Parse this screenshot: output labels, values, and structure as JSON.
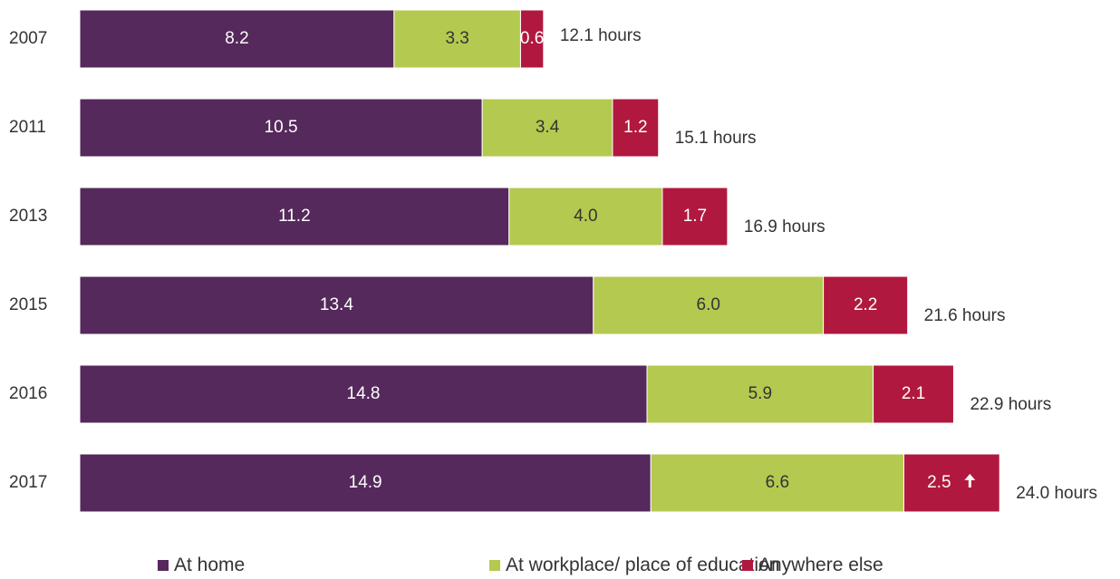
{
  "chart_data": {
    "type": "bar",
    "orientation": "horizontal",
    "stacked": true,
    "categories": [
      "2007",
      "2011",
      "2013",
      "2015",
      "2016",
      "2017"
    ],
    "series": [
      {
        "name": "At home",
        "color": "#55295b",
        "values": [
          8.2,
          10.5,
          11.2,
          13.4,
          14.8,
          14.9
        ]
      },
      {
        "name": "At workplace/ place of education",
        "color": "#b4c94f",
        "values": [
          3.3,
          3.4,
          4.0,
          6.0,
          5.9,
          6.6
        ]
      },
      {
        "name": "Anywhere else",
        "color": "#b1183f",
        "values": [
          0.6,
          1.2,
          1.7,
          2.2,
          2.1,
          2.5
        ]
      }
    ],
    "data_labels": [
      [
        "8.2",
        "3.3",
        "0.6"
      ],
      [
        "10.5",
        "3.4",
        "1.2"
      ],
      [
        "11.2",
        "4.0",
        "1.7"
      ],
      [
        "13.4",
        "6.0",
        "2.2"
      ],
      [
        "14.8",
        "5.9",
        "2.1"
      ],
      [
        "14.9",
        "6.6",
        "2.5"
      ]
    ],
    "totals": [
      12.1,
      15.1,
      16.9,
      21.6,
      22.9,
      24.0
    ],
    "total_labels": [
      "12.1 hours",
      "15.1 hours",
      "16.9 hours",
      "21.6 hours",
      "22.9 hours",
      "24.0 hours"
    ],
    "annotations": [
      {
        "category": "2017",
        "series": "Anywhere else",
        "icon": "up-arrow-icon",
        "meaning": "increase"
      }
    ],
    "title": "",
    "xlabel": "",
    "ylabel": "",
    "xlim": [
      0,
      24
    ],
    "grid": false,
    "legend_position": "bottom"
  }
}
